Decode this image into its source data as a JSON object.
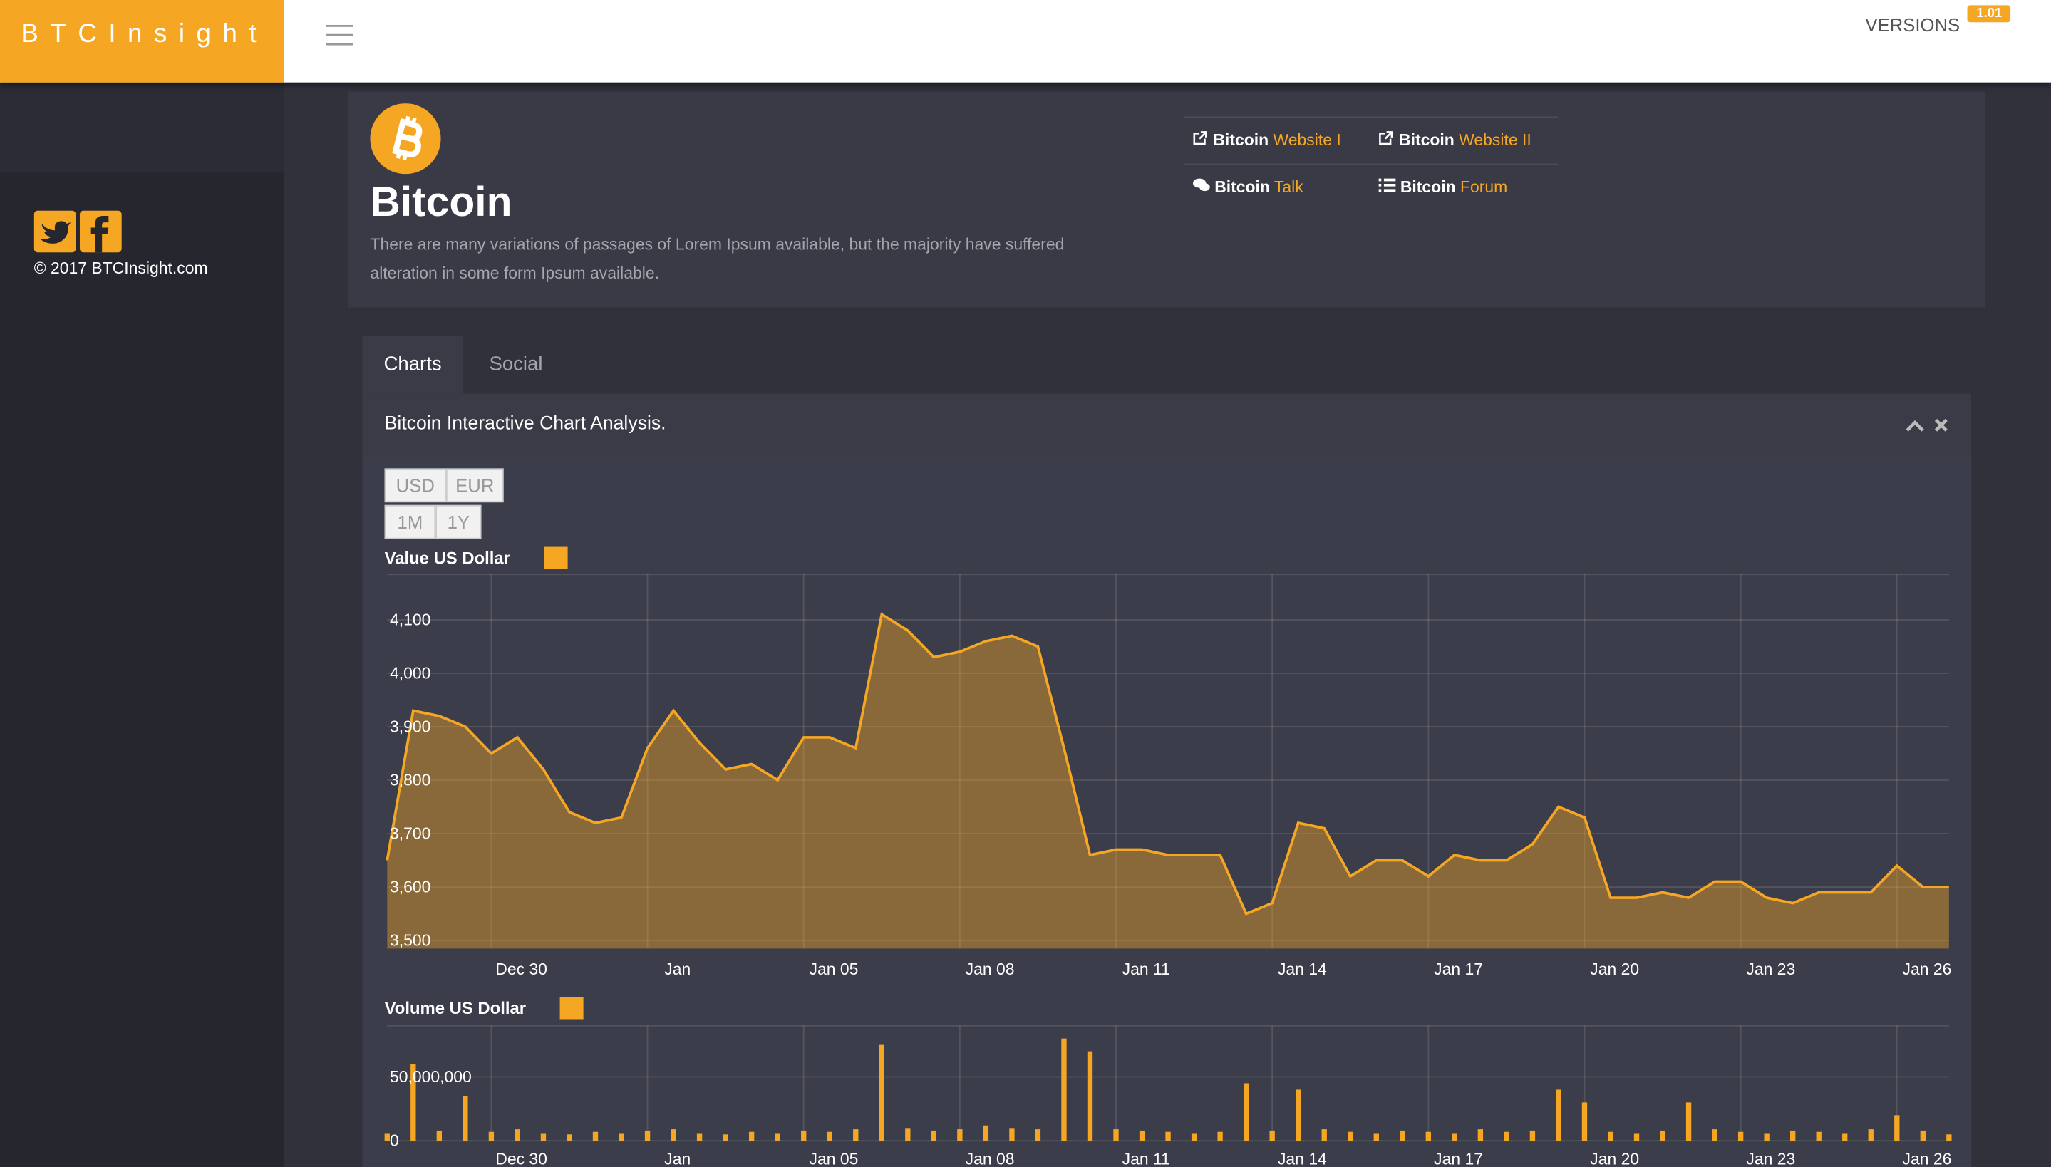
{
  "header": {
    "brand": "BTCInsight",
    "versions": "VERSIONS",
    "version": "1.01"
  },
  "sidebar": {
    "copyright": "© 2017 BTCInsight.com"
  },
  "coin": {
    "name": "Bitcoin",
    "description": "There are many variations of passages of Lorem Ipsum available, but the majority have suffered alteration in some form Ipsum available.",
    "links": [
      {
        "bold": "Bitcoin",
        "label": "Website I"
      },
      {
        "bold": "Bitcoin",
        "label": "Website II"
      },
      {
        "bold": "Bitcoin",
        "label": "Talk"
      },
      {
        "bold": "Bitcoin",
        "label": "Forum"
      }
    ]
  },
  "tabs": [
    "Charts",
    "Social"
  ],
  "panel": {
    "title": "Bitcoin Interactive Chart Analysis.",
    "currency_buttons": [
      "USD",
      "EUR"
    ],
    "range_buttons": [
      "1M",
      "1Y"
    ]
  },
  "chart_data": [
    {
      "type": "area",
      "title": "Value US Dollar",
      "color": "#f5a623",
      "grid": true,
      "categories": [
        null,
        null,
        null,
        null,
        "Dec 30",
        null,
        null,
        null,
        null,
        null,
        "Jan",
        null,
        null,
        null,
        null,
        null,
        "Jan 05",
        null,
        null,
        null,
        null,
        null,
        "Jan 08",
        null,
        null,
        null,
        null,
        null,
        "Jan 11",
        null,
        null,
        null,
        null,
        null,
        "Jan 14",
        null,
        null,
        null,
        null,
        null,
        "Jan 17",
        null,
        null,
        null,
        null,
        null,
        "Jan 20",
        null,
        null,
        null,
        null,
        null,
        "Jan 23",
        null,
        null,
        null,
        null,
        null,
        "Jan 26",
        null,
        null
      ],
      "values": [
        3650,
        3930,
        3920,
        3900,
        3850,
        3880,
        3820,
        3740,
        3720,
        3730,
        3860,
        3930,
        3870,
        3820,
        3830,
        3800,
        3880,
        3880,
        3860,
        4110,
        4080,
        4030,
        4040,
        4060,
        4070,
        4050,
        3860,
        3660,
        3670,
        3670,
        3660,
        3660,
        3660,
        3550,
        3570,
        3720,
        3710,
        3620,
        3650,
        3650,
        3620,
        3660,
        3650,
        3650,
        3680,
        3750,
        3730,
        3580,
        3580,
        3590,
        3580,
        3610,
        3610,
        3580,
        3570,
        3590,
        3590,
        3590,
        3640,
        3600,
        3600
      ],
      "ylim": [
        3485,
        4185
      ],
      "yticks": [
        {
          "value": 3500,
          "label": "3,500"
        },
        {
          "value": 3600,
          "label": "3,600"
        },
        {
          "value": 3700,
          "label": "3,700"
        },
        {
          "value": 3800,
          "label": "3,800"
        },
        {
          "value": 3900,
          "label": "3,900"
        },
        {
          "value": 4000,
          "label": "4,000"
        },
        {
          "value": 4100,
          "label": "4,100"
        }
      ]
    },
    {
      "type": "bar",
      "title": "Volume US Dollar",
      "color": "#f5a623",
      "grid": true,
      "categories": [
        null,
        null,
        null,
        null,
        "Dec 30",
        null,
        null,
        null,
        null,
        null,
        "Jan",
        null,
        null,
        null,
        null,
        null,
        "Jan 05",
        null,
        null,
        null,
        null,
        null,
        "Jan 08",
        null,
        null,
        null,
        null,
        null,
        "Jan 11",
        null,
        null,
        null,
        null,
        null,
        "Jan 14",
        null,
        null,
        null,
        null,
        null,
        "Jan 17",
        null,
        null,
        null,
        null,
        null,
        "Jan 20",
        null,
        null,
        null,
        null,
        null,
        "Jan 23",
        null,
        null,
        null,
        null,
        null,
        "Jan 26",
        null,
        null
      ],
      "values": [
        6000000,
        60000000,
        8000000,
        35000000,
        7000000,
        9000000,
        6000000,
        5000000,
        7000000,
        6000000,
        8000000,
        9000000,
        6000000,
        5000000,
        7000000,
        6000000,
        8000000,
        7000000,
        9000000,
        75000000,
        10000000,
        8000000,
        9000000,
        12000000,
        10000000,
        9000000,
        80000000,
        70000000,
        9000000,
        8000000,
        7000000,
        6000000,
        7000000,
        45000000,
        8000000,
        40000000,
        9000000,
        7000000,
        6000000,
        8000000,
        7000000,
        6000000,
        9000000,
        7000000,
        8000000,
        40000000,
        30000000,
        7000000,
        6000000,
        8000000,
        30000000,
        9000000,
        7000000,
        6000000,
        8000000,
        7000000,
        6000000,
        9000000,
        20000000,
        8000000,
        5000000
      ],
      "ylim": [
        0,
        90000000
      ],
      "yticks": [
        0,
        {
          "value": 50000000,
          "label": "50,000,000"
        }
      ]
    }
  ]
}
